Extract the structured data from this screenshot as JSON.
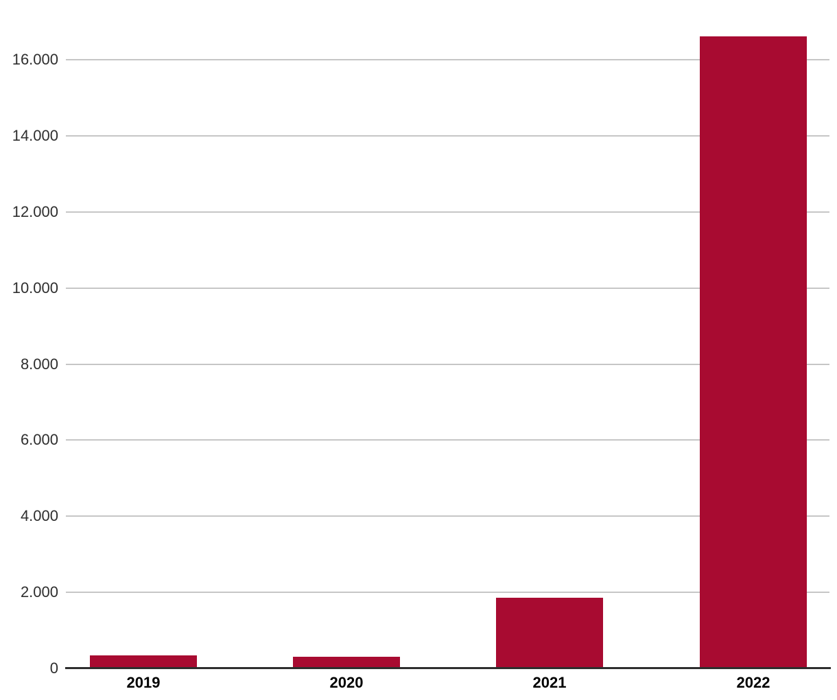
{
  "chart_data": {
    "type": "bar",
    "title": "",
    "xlabel": "",
    "ylabel": "",
    "categories": [
      "2019",
      "2020",
      "2021",
      "2022"
    ],
    "values": [
      345,
      305,
      1855,
      16605
    ],
    "ylim": [
      0,
      17550
    ],
    "y_tick_interval": 2000,
    "y_ticks": [
      {
        "value": 0,
        "label": "0"
      },
      {
        "value": 2000,
        "label": "2.000"
      },
      {
        "value": 4000,
        "label": "4.000"
      },
      {
        "value": 6000,
        "label": "6.000"
      },
      {
        "value": 8000,
        "label": "8.000"
      },
      {
        "value": 10000,
        "label": "10.000"
      },
      {
        "value": 12000,
        "label": "12.000"
      },
      {
        "value": 14000,
        "label": "14.000"
      },
      {
        "value": 16000,
        "label": "16.000"
      }
    ],
    "grid": true,
    "legend": false,
    "colors": {
      "bar": "#A80B31",
      "gridline": "#C6C6C6",
      "axis_line": "#2E2E2E",
      "y_tick_label": "#2E2E2E",
      "x_tick_label": "#000000",
      "background": "#FFFFFF"
    }
  }
}
